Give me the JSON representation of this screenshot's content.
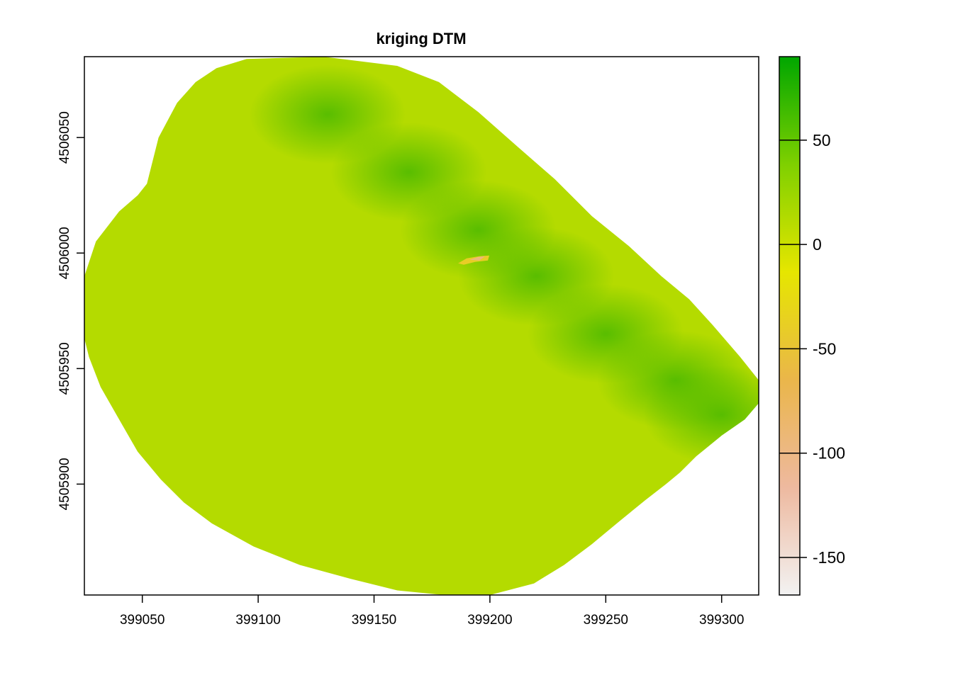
{
  "chart_data": {
    "type": "heatmap",
    "title": "kriging DTM",
    "xlabel": "",
    "ylabel": "",
    "xlim": [
      399025,
      399316
    ],
    "ylim": [
      4505852,
      4506085
    ],
    "x_ticks": [
      399050,
      399100,
      399150,
      399200,
      399250,
      399300
    ],
    "y_ticks": [
      4505900,
      4505950,
      4506000,
      4506050
    ],
    "x_tick_labels": [
      "399050",
      "399100",
      "399150",
      "399200",
      "399250",
      "399300"
    ],
    "y_tick_labels": [
      "4505900",
      "4505950",
      "4506000",
      "4506050"
    ],
    "legend": {
      "position": "right",
      "range": [
        -168,
        90
      ],
      "ticks": [
        -150,
        -100,
        -50,
        0,
        50
      ],
      "tick_labels": [
        "-150",
        "-100",
        "-50",
        "0",
        "50"
      ],
      "colors": [
        "#f2f2f2",
        "#eeb99f",
        "#eab64a",
        "#e6e600",
        "#7fd000",
        "#00a600"
      ]
    },
    "surface": {
      "boundary": [
        [
          399052,
          4506030
        ],
        [
          399057,
          4506050
        ],
        [
          399065,
          4506065
        ],
        [
          399073,
          4506074
        ],
        [
          399082,
          4506080
        ],
        [
          399095,
          4506084
        ],
        [
          399128,
          4506085
        ],
        [
          399160,
          4506081
        ],
        [
          399178,
          4506074
        ],
        [
          399195,
          4506061
        ],
        [
          399212,
          4506046
        ],
        [
          399228,
          4506032
        ],
        [
          399244,
          4506016
        ],
        [
          399260,
          4506003
        ],
        [
          399274,
          4505990
        ],
        [
          399286,
          4505980
        ],
        [
          399296,
          4505969
        ],
        [
          399308,
          4505955
        ],
        [
          399316,
          4505945
        ],
        [
          399316,
          4505935
        ],
        [
          399310,
          4505928
        ],
        [
          399300,
          4505921
        ],
        [
          399289,
          4505912
        ],
        [
          399282,
          4505905
        ],
        [
          399276,
          4505900
        ],
        [
          399267,
          4505893
        ],
        [
          399256,
          4505884
        ],
        [
          399244,
          4505874
        ],
        [
          399232,
          4505865
        ],
        [
          399219,
          4505857
        ],
        [
          399200,
          4505852
        ],
        [
          399180,
          4505852
        ],
        [
          399160,
          4505854
        ],
        [
          399140,
          4505859
        ],
        [
          399118,
          4505865
        ],
        [
          399098,
          4505873
        ],
        [
          399080,
          4505883
        ],
        [
          399068,
          4505892
        ],
        [
          399058,
          4505902
        ],
        [
          399048,
          4505914
        ],
        [
          399040,
          4505928
        ],
        [
          399032,
          4505942
        ],
        [
          399027,
          4505955
        ],
        [
          399025,
          4505963
        ],
        [
          399025,
          4505990
        ],
        [
          399030,
          4506005
        ],
        [
          399040,
          4506018
        ],
        [
          399048,
          4506025
        ]
      ],
      "base_value": 12,
      "ridge_value": 35,
      "anomaly": {
        "x": 399193,
        "y": 4505998,
        "min_value": -95
      }
    }
  }
}
